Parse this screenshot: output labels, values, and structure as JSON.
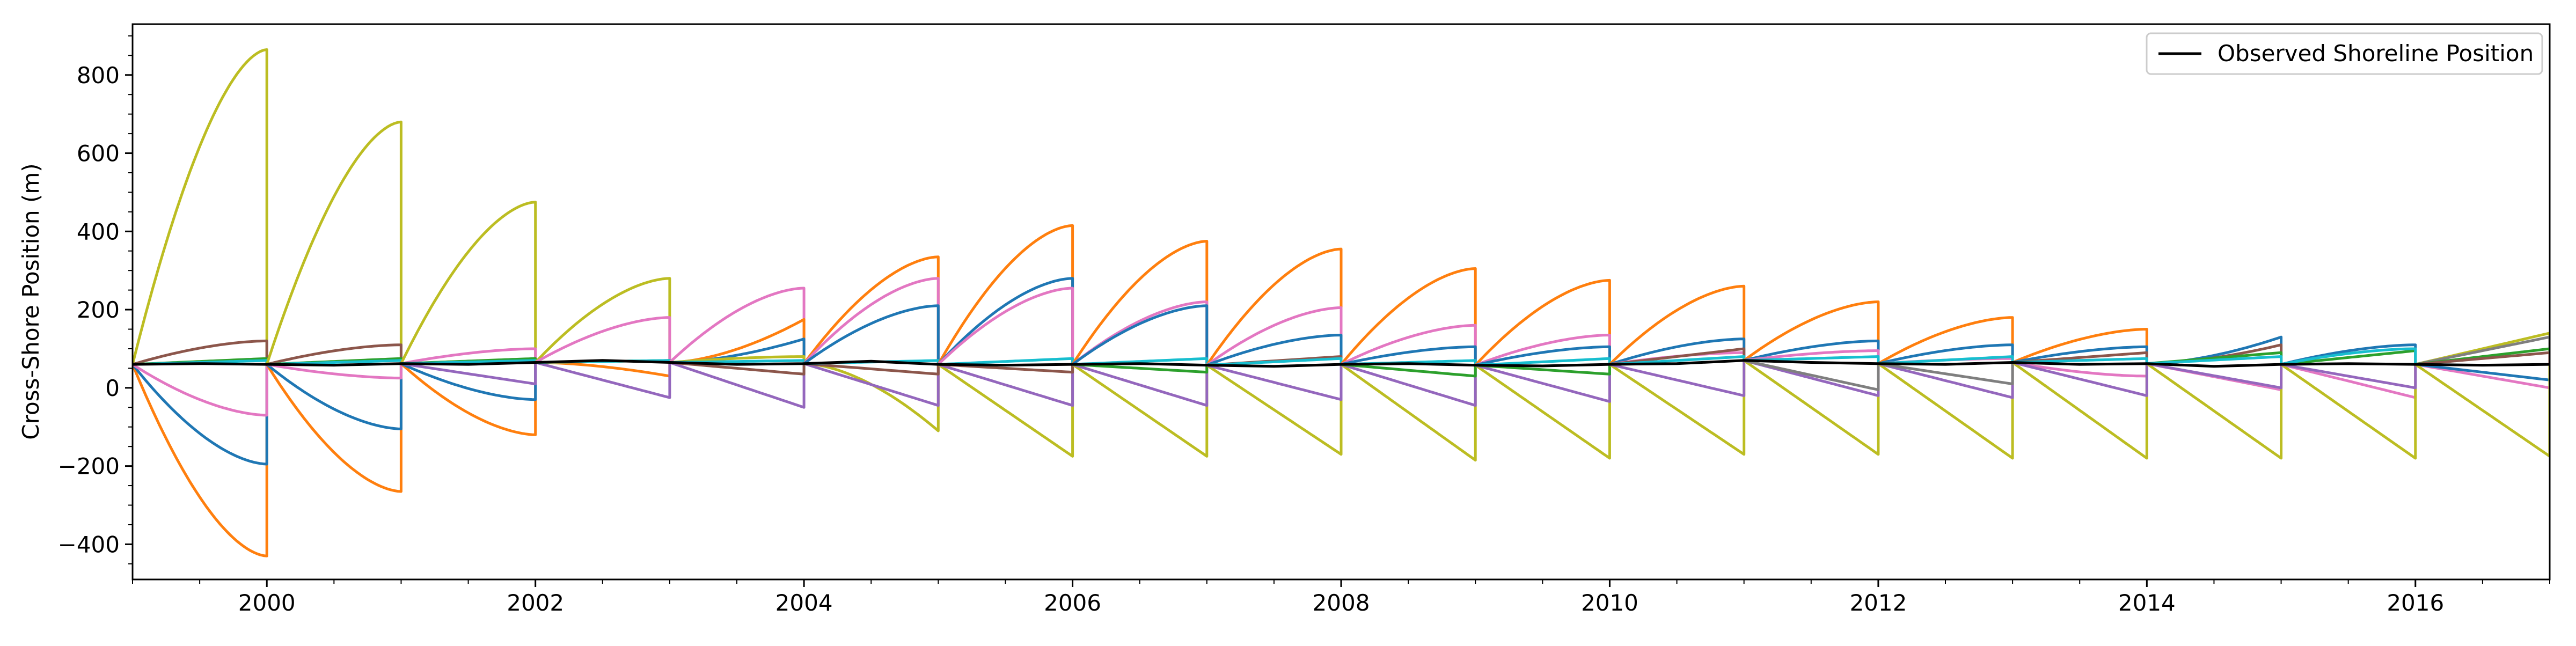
{
  "chart_data": {
    "type": "line",
    "title": "",
    "xlabel": "",
    "ylabel": "Cross-Shore Position (m)",
    "xlim": [
      1999.0,
      2017.0
    ],
    "ylim": [
      -490,
      930
    ],
    "x_ticks": [
      2000,
      2002,
      2004,
      2006,
      2008,
      2010,
      2012,
      2014,
      2016
    ],
    "x_tick_labels": [
      "2000",
      "2002",
      "2004",
      "2006",
      "2008",
      "2010",
      "2012",
      "2014",
      "2016"
    ],
    "y_ticks": [
      -400,
      -200,
      0,
      200,
      400,
      600,
      800
    ],
    "y_tick_labels": [
      "−400",
      "−200",
      "0",
      "200",
      "400",
      "600",
      "800"
    ],
    "grid": false,
    "legend": {
      "position": "top-right",
      "entries": [
        "Observed Shoreline Position"
      ]
    },
    "colors": {
      "blue": "#1f77b4",
      "orange": "#ff7f0e",
      "green": "#2ca02c",
      "red": "#d62728",
      "purple": "#9467bd",
      "brown": "#8c564b",
      "pink": "#e377c2",
      "gray": "#7f7f7f",
      "olive": "#bcbd22",
      "cyan": "#17becf",
      "observed": "#000000"
    },
    "observed": {
      "name": "Observed Shoreline Position",
      "x": [
        1999.0,
        1999.5,
        2000.0,
        2000.5,
        2001.0,
        2001.5,
        2002.0,
        2002.5,
        2003.0,
        2003.5,
        2004.0,
        2004.5,
        2005.0,
        2005.5,
        2006.0,
        2006.5,
        2007.0,
        2007.5,
        2008.0,
        2008.5,
        2009.0,
        2009.5,
        2010.0,
        2010.5,
        2011.0,
        2011.5,
        2012.0,
        2012.5,
        2013.0,
        2013.5,
        2014.0,
        2014.5,
        2015.0,
        2015.5,
        2016.0,
        2016.5,
        2017.0
      ],
      "y": [
        60,
        62,
        60,
        58,
        62,
        60,
        65,
        70,
        65,
        60,
        62,
        68,
        60,
        58,
        60,
        62,
        58,
        55,
        60,
        62,
        58,
        56,
        60,
        62,
        70,
        65,
        62,
        60,
        65,
        60,
        62,
        55,
        60,
        62,
        60,
        58,
        60
      ]
    },
    "forecast_runs": [
      {
        "start": 1999,
        "color": "#bcbd22",
        "end": 865,
        "shape": "concave"
      },
      {
        "start": 1999,
        "color": "#ff7f0e",
        "end": -430,
        "shape": "concave"
      },
      {
        "start": 1999,
        "color": "#1f77b4",
        "end": -195,
        "shape": "concave"
      },
      {
        "start": 1999,
        "color": "#e377c2",
        "end": -70,
        "shape": "concave"
      },
      {
        "start": 1999,
        "color": "#8c564b",
        "end": 120,
        "shape": "concave"
      },
      {
        "start": 1999,
        "color": "#2ca02c",
        "end": 75,
        "shape": "linear"
      },
      {
        "start": 1999,
        "color": "#17becf",
        "end": 70,
        "shape": "linear"
      },
      {
        "start": 2000,
        "color": "#bcbd22",
        "end": 680,
        "shape": "concave"
      },
      {
        "start": 2000,
        "color": "#ff7f0e",
        "end": -265,
        "shape": "concave"
      },
      {
        "start": 2000,
        "color": "#1f77b4",
        "end": -105,
        "shape": "concave"
      },
      {
        "start": 2000,
        "color": "#e377c2",
        "end": 25,
        "shape": "concave"
      },
      {
        "start": 2000,
        "color": "#8c564b",
        "end": 110,
        "shape": "concave"
      },
      {
        "start": 2000,
        "color": "#2ca02c",
        "end": 75,
        "shape": "linear"
      },
      {
        "start": 2000,
        "color": "#17becf",
        "end": 70,
        "shape": "linear"
      },
      {
        "start": 2001,
        "color": "#bcbd22",
        "end": 475,
        "shape": "concave"
      },
      {
        "start": 2001,
        "color": "#ff7f0e",
        "end": -120,
        "shape": "concave"
      },
      {
        "start": 2001,
        "color": "#1f77b4",
        "end": -30,
        "shape": "concave"
      },
      {
        "start": 2001,
        "color": "#e377c2",
        "end": 100,
        "shape": "concave"
      },
      {
        "start": 2001,
        "color": "#9467bd",
        "end": 10,
        "shape": "linear"
      },
      {
        "start": 2001,
        "color": "#2ca02c",
        "end": 75,
        "shape": "linear"
      },
      {
        "start": 2001,
        "color": "#17becf",
        "end": 70,
        "shape": "linear"
      },
      {
        "start": 2002,
        "color": "#bcbd22",
        "end": 280,
        "shape": "concave"
      },
      {
        "start": 2002,
        "color": "#e377c2",
        "end": 180,
        "shape": "concave"
      },
      {
        "start": 2002,
        "color": "#ff7f0e",
        "end": 30,
        "shape": "convex"
      },
      {
        "start": 2002,
        "color": "#9467bd",
        "end": -25,
        "shape": "linear"
      },
      {
        "start": 2002,
        "color": "#2ca02c",
        "end": 70,
        "shape": "linear"
      },
      {
        "start": 2002,
        "color": "#17becf",
        "end": 70,
        "shape": "linear"
      },
      {
        "start": 2003,
        "color": "#e377c2",
        "end": 255,
        "shape": "concave"
      },
      {
        "start": 2003,
        "color": "#ff7f0e",
        "end": 175,
        "shape": "convex"
      },
      {
        "start": 2003,
        "color": "#1f77b4",
        "end": 125,
        "shape": "convex"
      },
      {
        "start": 2003,
        "color": "#bcbd22",
        "end": 80,
        "shape": "concave"
      },
      {
        "start": 2003,
        "color": "#9467bd",
        "end": -50,
        "shape": "linear"
      },
      {
        "start": 2003,
        "color": "#8c564b",
        "end": 35,
        "shape": "linear"
      },
      {
        "start": 2003,
        "color": "#17becf",
        "end": 70,
        "shape": "linear"
      },
      {
        "start": 2004,
        "color": "#ff7f0e",
        "end": 335,
        "shape": "concave"
      },
      {
        "start": 2004,
        "color": "#e377c2",
        "end": 280,
        "shape": "concave"
      },
      {
        "start": 2004,
        "color": "#1f77b4",
        "end": 210,
        "shape": "concave"
      },
      {
        "start": 2004,
        "color": "#bcbd22",
        "end": -110,
        "shape": "convex"
      },
      {
        "start": 2004,
        "color": "#9467bd",
        "end": -45,
        "shape": "linear"
      },
      {
        "start": 2004,
        "color": "#8c564b",
        "end": 35,
        "shape": "linear"
      },
      {
        "start": 2004,
        "color": "#17becf",
        "end": 70,
        "shape": "linear"
      },
      {
        "start": 2005,
        "color": "#ff7f0e",
        "end": 415,
        "shape": "concave"
      },
      {
        "start": 2005,
        "color": "#1f77b4",
        "end": 280,
        "shape": "concave"
      },
      {
        "start": 2005,
        "color": "#e377c2",
        "end": 255,
        "shape": "concave"
      },
      {
        "start": 2005,
        "color": "#bcbd22",
        "end": -175,
        "shape": "linear"
      },
      {
        "start": 2005,
        "color": "#9467bd",
        "end": -45,
        "shape": "linear"
      },
      {
        "start": 2005,
        "color": "#8c564b",
        "end": 40,
        "shape": "linear"
      },
      {
        "start": 2005,
        "color": "#17becf",
        "end": 75,
        "shape": "linear"
      },
      {
        "start": 2006,
        "color": "#ff7f0e",
        "end": 375,
        "shape": "concave"
      },
      {
        "start": 2006,
        "color": "#e377c2",
        "end": 220,
        "shape": "concave"
      },
      {
        "start": 2006,
        "color": "#1f77b4",
        "end": 210,
        "shape": "concave"
      },
      {
        "start": 2006,
        "color": "#bcbd22",
        "end": -175,
        "shape": "linear"
      },
      {
        "start": 2006,
        "color": "#9467bd",
        "end": -45,
        "shape": "linear"
      },
      {
        "start": 2006,
        "color": "#2ca02c",
        "end": 40,
        "shape": "linear"
      },
      {
        "start": 2006,
        "color": "#17becf",
        "end": 75,
        "shape": "linear"
      },
      {
        "start": 2007,
        "color": "#ff7f0e",
        "end": 355,
        "shape": "concave"
      },
      {
        "start": 2007,
        "color": "#e377c2",
        "end": 205,
        "shape": "concave"
      },
      {
        "start": 2007,
        "color": "#1f77b4",
        "end": 135,
        "shape": "concave"
      },
      {
        "start": 2007,
        "color": "#bcbd22",
        "end": -170,
        "shape": "linear"
      },
      {
        "start": 2007,
        "color": "#9467bd",
        "end": -30,
        "shape": "linear"
      },
      {
        "start": 2007,
        "color": "#8c564b",
        "end": 80,
        "shape": "linear"
      },
      {
        "start": 2007,
        "color": "#17becf",
        "end": 75,
        "shape": "linear"
      },
      {
        "start": 2008,
        "color": "#ff7f0e",
        "end": 305,
        "shape": "concave"
      },
      {
        "start": 2008,
        "color": "#e377c2",
        "end": 160,
        "shape": "concave"
      },
      {
        "start": 2008,
        "color": "#1f77b4",
        "end": 105,
        "shape": "concave"
      },
      {
        "start": 2008,
        "color": "#bcbd22",
        "end": -185,
        "shape": "linear"
      },
      {
        "start": 2008,
        "color": "#9467bd",
        "end": -45,
        "shape": "linear"
      },
      {
        "start": 2008,
        "color": "#2ca02c",
        "end": 30,
        "shape": "linear"
      },
      {
        "start": 2008,
        "color": "#17becf",
        "end": 70,
        "shape": "linear"
      },
      {
        "start": 2009,
        "color": "#ff7f0e",
        "end": 275,
        "shape": "concave"
      },
      {
        "start": 2009,
        "color": "#e377c2",
        "end": 135,
        "shape": "concave"
      },
      {
        "start": 2009,
        "color": "#1f77b4",
        "end": 105,
        "shape": "concave"
      },
      {
        "start": 2009,
        "color": "#bcbd22",
        "end": -180,
        "shape": "linear"
      },
      {
        "start": 2009,
        "color": "#9467bd",
        "end": -35,
        "shape": "linear"
      },
      {
        "start": 2009,
        "color": "#2ca02c",
        "end": 35,
        "shape": "linear"
      },
      {
        "start": 2009,
        "color": "#17becf",
        "end": 75,
        "shape": "linear"
      },
      {
        "start": 2010,
        "color": "#ff7f0e",
        "end": 260,
        "shape": "concave"
      },
      {
        "start": 2010,
        "color": "#1f77b4",
        "end": 125,
        "shape": "concave"
      },
      {
        "start": 2010,
        "color": "#e377c2",
        "end": 90,
        "shape": "concave"
      },
      {
        "start": 2010,
        "color": "#bcbd22",
        "end": -170,
        "shape": "linear"
      },
      {
        "start": 2010,
        "color": "#9467bd",
        "end": -20,
        "shape": "linear"
      },
      {
        "start": 2010,
        "color": "#8c564b",
        "end": 100,
        "shape": "linear"
      },
      {
        "start": 2010,
        "color": "#17becf",
        "end": 80,
        "shape": "linear"
      },
      {
        "start": 2011,
        "color": "#ff7f0e",
        "end": 220,
        "shape": "concave"
      },
      {
        "start": 2011,
        "color": "#1f77b4",
        "end": 120,
        "shape": "concave"
      },
      {
        "start": 2011,
        "color": "#e377c2",
        "end": 95,
        "shape": "concave"
      },
      {
        "start": 2011,
        "color": "#bcbd22",
        "end": -170,
        "shape": "linear"
      },
      {
        "start": 2011,
        "color": "#9467bd",
        "end": -20,
        "shape": "linear"
      },
      {
        "start": 2011,
        "color": "#7f7f7f",
        "end": -5,
        "shape": "linear"
      },
      {
        "start": 2011,
        "color": "#17becf",
        "end": 80,
        "shape": "linear"
      },
      {
        "start": 2012,
        "color": "#ff7f0e",
        "end": 180,
        "shape": "concave"
      },
      {
        "start": 2012,
        "color": "#1f77b4",
        "end": 110,
        "shape": "concave"
      },
      {
        "start": 2012,
        "color": "#e377c2",
        "end": 75,
        "shape": "concave"
      },
      {
        "start": 2012,
        "color": "#bcbd22",
        "end": -180,
        "shape": "linear"
      },
      {
        "start": 2012,
        "color": "#9467bd",
        "end": -25,
        "shape": "linear"
      },
      {
        "start": 2012,
        "color": "#7f7f7f",
        "end": 10,
        "shape": "linear"
      },
      {
        "start": 2012,
        "color": "#17becf",
        "end": 80,
        "shape": "linear"
      },
      {
        "start": 2013,
        "color": "#ff7f0e",
        "end": 150,
        "shape": "concave"
      },
      {
        "start": 2013,
        "color": "#1f77b4",
        "end": 105,
        "shape": "concave"
      },
      {
        "start": 2013,
        "color": "#e377c2",
        "end": 30,
        "shape": "concave"
      },
      {
        "start": 2013,
        "color": "#bcbd22",
        "end": -180,
        "shape": "linear"
      },
      {
        "start": 2013,
        "color": "#9467bd",
        "end": -20,
        "shape": "linear"
      },
      {
        "start": 2013,
        "color": "#8c564b",
        "end": 90,
        "shape": "linear"
      },
      {
        "start": 2013,
        "color": "#17becf",
        "end": 75,
        "shape": "linear"
      },
      {
        "start": 2014,
        "color": "#1f77b4",
        "end": 130,
        "shape": "convex"
      },
      {
        "start": 2014,
        "color": "#8c564b",
        "end": 110,
        "shape": "convex"
      },
      {
        "start": 2014,
        "color": "#e377c2",
        "end": -5,
        "shape": "linear"
      },
      {
        "start": 2014,
        "color": "#bcbd22",
        "end": -180,
        "shape": "linear"
      },
      {
        "start": 2014,
        "color": "#9467bd",
        "end": 0,
        "shape": "linear"
      },
      {
        "start": 2014,
        "color": "#2ca02c",
        "end": 90,
        "shape": "linear"
      },
      {
        "start": 2014,
        "color": "#17becf",
        "end": 80,
        "shape": "linear"
      },
      {
        "start": 2015,
        "color": "#1f77b4",
        "end": 110,
        "shape": "concave"
      },
      {
        "start": 2015,
        "color": "#e377c2",
        "end": -25,
        "shape": "linear"
      },
      {
        "start": 2015,
        "color": "#bcbd22",
        "end": -180,
        "shape": "linear"
      },
      {
        "start": 2015,
        "color": "#9467bd",
        "end": 0,
        "shape": "linear"
      },
      {
        "start": 2015,
        "color": "#2ca02c",
        "end": 95,
        "shape": "linear"
      },
      {
        "start": 2015,
        "color": "#17becf",
        "end": 100,
        "shape": "concave"
      },
      {
        "start": 2016,
        "color": "#bcbd22",
        "end": 140,
        "shape": "linear"
      },
      {
        "start": 2016,
        "color": "#7f7f7f",
        "end": 130,
        "shape": "linear"
      },
      {
        "start": 2016,
        "color": "#2ca02c",
        "end": 100,
        "shape": "linear"
      },
      {
        "start": 2016,
        "color": "#8c564b",
        "end": 90,
        "shape": "linear"
      },
      {
        "start": 2016,
        "color": "#e377c2",
        "end": 0,
        "shape": "linear"
      },
      {
        "start": 2016,
        "color": "#1f77b4",
        "end": 20,
        "shape": "linear"
      },
      {
        "start": 2016,
        "color": "#bcbd22",
        "end": -175,
        "shape": "linear"
      }
    ]
  }
}
